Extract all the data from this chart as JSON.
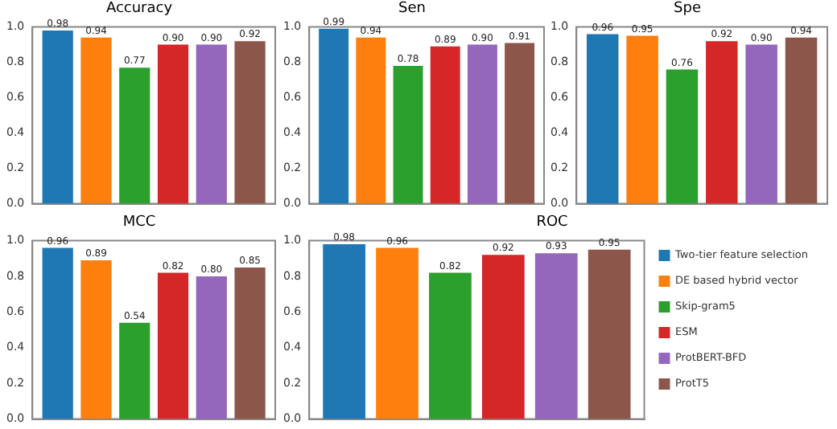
{
  "chart_data": [
    {
      "type": "bar",
      "title": "Accuracy",
      "categories": [
        null
      ],
      "ylim": [
        0,
        1
      ],
      "yticks": [
        {
          "value": 0,
          "label": "0.0"
        },
        {
          "value": 0.2,
          "label": "0.2"
        },
        {
          "value": 0.4,
          "label": "0.4"
        },
        {
          "value": 0.6,
          "label": "0.6"
        },
        {
          "value": 0.8,
          "label": "0.8"
        },
        {
          "value": 1,
          "label": "1.0"
        }
      ],
      "tick_labels": "y",
      "legend": false,
      "series": [
        {
          "color": "#1f77b4",
          "values": [
            0.98
          ],
          "value_labels": [
            "0.98"
          ]
        },
        {
          "color": "#ff7f0e",
          "values": [
            0.94
          ],
          "value_labels": [
            "0.94"
          ]
        },
        {
          "color": "#2ca02c",
          "values": [
            0.77
          ],
          "value_labels": [
            "0.77"
          ]
        },
        {
          "color": "#d62728",
          "values": [
            0.9
          ],
          "value_labels": [
            "0.90"
          ]
        },
        {
          "color": "#9467bd",
          "values": [
            0.9
          ],
          "value_labels": [
            "0.90"
          ]
        },
        {
          "color": "#8c564b",
          "values": [
            0.92
          ],
          "value_labels": [
            "0.92"
          ]
        }
      ]
    },
    {
      "type": "bar",
      "title": "Sen",
      "categories": [
        null
      ],
      "ylim": [
        0,
        1
      ],
      "yticks": [
        {
          "value": 0,
          "label": "0.0"
        },
        {
          "value": 0.2,
          "label": "0.2"
        },
        {
          "value": 0.4,
          "label": "0.4"
        },
        {
          "value": 0.6,
          "label": "0.6"
        },
        {
          "value": 0.8,
          "label": "0.8"
        },
        {
          "value": 1,
          "label": "1.0"
        }
      ],
      "tick_labels": "y",
      "legend": false,
      "series": [
        {
          "color": "#1f77b4",
          "values": [
            0.99
          ],
          "value_labels": [
            "0.99"
          ]
        },
        {
          "color": "#ff7f0e",
          "values": [
            0.94
          ],
          "value_labels": [
            "0.94"
          ]
        },
        {
          "color": "#2ca02c",
          "values": [
            0.78
          ],
          "value_labels": [
            "0.78"
          ]
        },
        {
          "color": "#d62728",
          "values": [
            0.89
          ],
          "value_labels": [
            "0.89"
          ]
        },
        {
          "color": "#9467bd",
          "values": [
            0.9
          ],
          "value_labels": [
            "0.90"
          ]
        },
        {
          "color": "#8c564b",
          "values": [
            0.91
          ],
          "value_labels": [
            "0.91"
          ]
        }
      ]
    },
    {
      "type": "bar",
      "title": "Spe",
      "categories": [
        null
      ],
      "ylim": [
        0,
        1
      ],
      "yticks": [
        {
          "value": 0,
          "label": "0.0"
        },
        {
          "value": 0.2,
          "label": "0.2"
        },
        {
          "value": 0.4,
          "label": "0.4"
        },
        {
          "value": 0.6,
          "label": "0.6"
        },
        {
          "value": 0.8,
          "label": "0.8"
        },
        {
          "value": 1,
          "label": "1.0"
        }
      ],
      "tick_labels": "y",
      "legend": false,
      "series": [
        {
          "color": "#1f77b4",
          "values": [
            0.96
          ],
          "value_labels": [
            "0.96"
          ]
        },
        {
          "color": "#ff7f0e",
          "values": [
            0.95
          ],
          "value_labels": [
            "0.95"
          ]
        },
        {
          "color": "#2ca02c",
          "values": [
            0.76
          ],
          "value_labels": [
            "0.76"
          ]
        },
        {
          "color": "#d62728",
          "values": [
            0.92
          ],
          "value_labels": [
            "0.92"
          ]
        },
        {
          "color": "#9467bd",
          "values": [
            0.9
          ],
          "value_labels": [
            "0.90"
          ]
        },
        {
          "color": "#8c564b",
          "values": [
            0.94
          ],
          "value_labels": [
            "0.94"
          ]
        }
      ]
    },
    {
      "type": "bar",
      "title": "MCC",
      "categories": [
        null
      ],
      "ylim": [
        0,
        1
      ],
      "yticks": [
        {
          "value": 0,
          "label": "0.0"
        },
        {
          "value": 0.2,
          "label": "0.2"
        },
        {
          "value": 0.4,
          "label": "0.4"
        },
        {
          "value": 0.6,
          "label": "0.6"
        },
        {
          "value": 0.8,
          "label": "0.8"
        },
        {
          "value": 1,
          "label": "1.0"
        }
      ],
      "tick_labels": "y",
      "legend": false,
      "series": [
        {
          "color": "#1f77b4",
          "values": [
            0.96
          ],
          "value_labels": [
            "0.96"
          ]
        },
        {
          "color": "#ff7f0e",
          "values": [
            0.89
          ],
          "value_labels": [
            "0.89"
          ]
        },
        {
          "color": "#2ca02c",
          "values": [
            0.54
          ],
          "value_labels": [
            "0.54"
          ]
        },
        {
          "color": "#d62728",
          "values": [
            0.82
          ],
          "value_labels": [
            "0.82"
          ]
        },
        {
          "color": "#9467bd",
          "values": [
            0.8
          ],
          "value_labels": [
            "0.80"
          ]
        },
        {
          "color": "#8c564b",
          "values": [
            0.85
          ],
          "value_labels": [
            "0.85"
          ]
        }
      ]
    },
    {
      "type": "bar",
      "title": "ROC",
      "categories": [
        null
      ],
      "ylim": [
        0,
        1
      ],
      "yticks": [
        {
          "value": 0,
          "label": "0.0"
        },
        {
          "value": 0.2,
          "label": "0.2"
        },
        {
          "value": 0.4,
          "label": "0.4"
        },
        {
          "value": 0.6,
          "label": "0.6"
        },
        {
          "value": 0.8,
          "label": "0.8"
        },
        {
          "value": 1,
          "label": "1.0"
        }
      ],
      "tick_labels": "y",
      "legend": "right",
      "series": [
        {
          "name": "Two-tier feature selection",
          "color": "#1f77b4",
          "values": [
            0.98
          ],
          "value_labels": [
            "0.98"
          ]
        },
        {
          "name": "DE based hybrid vector",
          "color": "#ff7f0e",
          "values": [
            0.96
          ],
          "value_labels": [
            "0.96"
          ]
        },
        {
          "name": "Skip-gram5",
          "color": "#2ca02c",
          "values": [
            0.82
          ],
          "value_labels": [
            "0.82"
          ]
        },
        {
          "name": "ESM",
          "color": "#d62728",
          "values": [
            0.92
          ],
          "value_labels": [
            "0.92"
          ]
        },
        {
          "name": "ProtBERT-BFD",
          "color": "#9467bd",
          "values": [
            0.93
          ],
          "value_labels": [
            "0.93"
          ]
        },
        {
          "name": "ProtT5",
          "color": "#8c564b",
          "values": [
            0.95
          ],
          "value_labels": [
            "0.95"
          ]
        }
      ]
    }
  ]
}
